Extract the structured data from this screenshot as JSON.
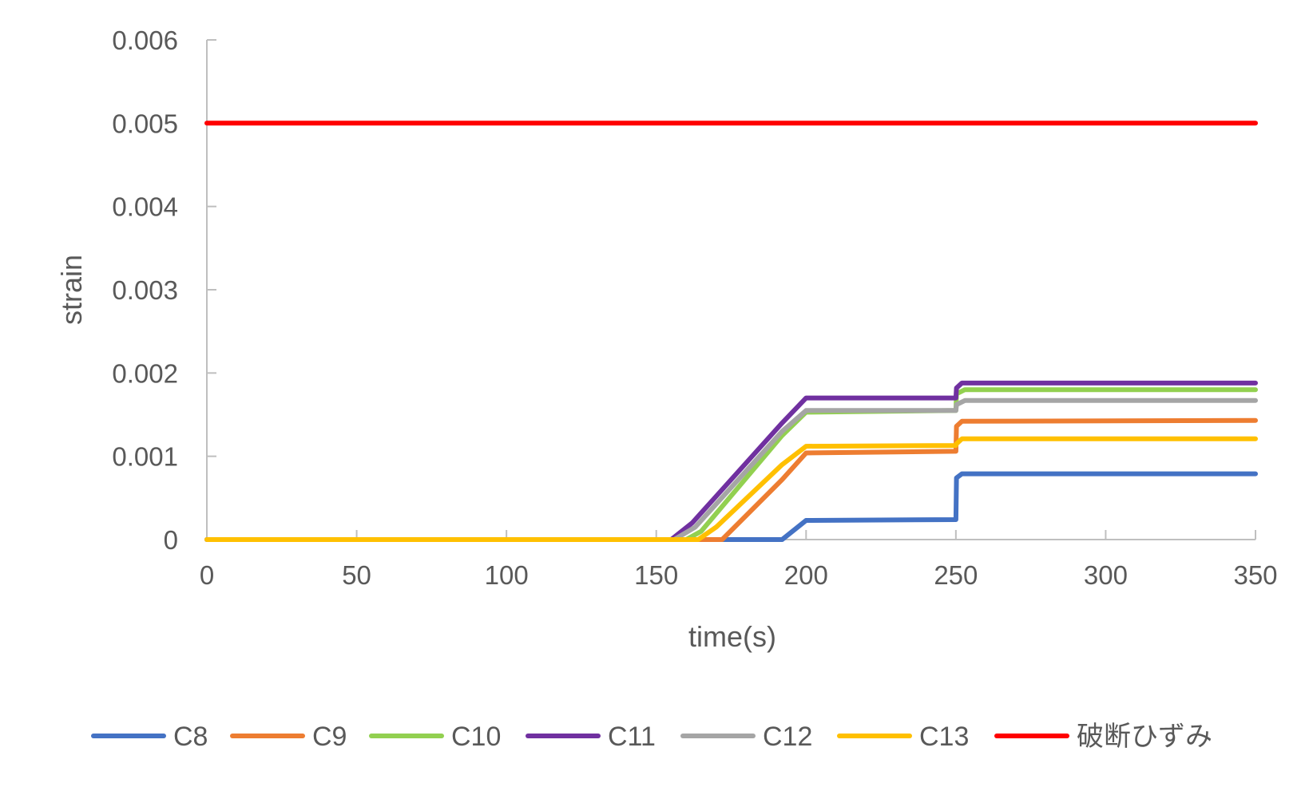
{
  "chart_data": {
    "type": "line",
    "title": "",
    "xlabel": "time(s)",
    "ylabel": "strain",
    "xlim": [
      0,
      350
    ],
    "ylim": [
      0,
      0.006
    ],
    "x_ticks": [
      0,
      50,
      100,
      150,
      200,
      250,
      300,
      350
    ],
    "x_tick_labels": [
      "0",
      "50",
      "100",
      "150",
      "200",
      "250",
      "300",
      "350"
    ],
    "y_ticks": [
      0,
      0.001,
      0.002,
      0.003,
      0.004,
      0.005,
      0.006
    ],
    "y_tick_labels": [
      "0",
      "0.001",
      "0.002",
      "0.003",
      "0.004",
      "0.005",
      "0.006"
    ],
    "grid": false,
    "legend_position": "bottom",
    "series": [
      {
        "name": "C8",
        "color": "#4472C4",
        "points": [
          [
            0,
            0
          ],
          [
            192,
            0
          ],
          [
            200,
            0.00023
          ],
          [
            250,
            0.00024
          ],
          [
            250.2,
            0.00074
          ],
          [
            252,
            0.00079
          ],
          [
            350,
            0.00079
          ]
        ]
      },
      {
        "name": "C9",
        "color": "#ED7D31",
        "points": [
          [
            0,
            0
          ],
          [
            172,
            0
          ],
          [
            192,
            0.00072
          ],
          [
            200,
            0.00104
          ],
          [
            250,
            0.00106
          ],
          [
            250.2,
            0.00136
          ],
          [
            252,
            0.00142
          ],
          [
            350,
            0.00143
          ]
        ]
      },
      {
        "name": "C10",
        "color": "#92D050",
        "points": [
          [
            0,
            0
          ],
          [
            160,
            0
          ],
          [
            165,
            0.0001
          ],
          [
            192,
            0.00125
          ],
          [
            200,
            0.00153
          ],
          [
            250,
            0.00155
          ],
          [
            250.2,
            0.00175
          ],
          [
            253,
            0.0018
          ],
          [
            350,
            0.0018
          ]
        ]
      },
      {
        "name": "C11",
        "color": "#7030A0",
        "points": [
          [
            0,
            0
          ],
          [
            155,
            0
          ],
          [
            162,
            0.0002
          ],
          [
            192,
            0.0014
          ],
          [
            200,
            0.0017
          ],
          [
            250,
            0.0017
          ],
          [
            250.2,
            0.00182
          ],
          [
            252,
            0.00188
          ],
          [
            350,
            0.00188
          ]
        ]
      },
      {
        "name": "C12",
        "color": "#A5A5A5",
        "points": [
          [
            0,
            0
          ],
          [
            156,
            0
          ],
          [
            163,
            0.00015
          ],
          [
            192,
            0.0013
          ],
          [
            200,
            0.00155
          ],
          [
            250,
            0.00155
          ],
          [
            250.2,
            0.00162
          ],
          [
            253,
            0.00167
          ],
          [
            350,
            0.00167
          ]
        ]
      },
      {
        "name": "C13",
        "color": "#FFC000",
        "points": [
          [
            0,
            0
          ],
          [
            164,
            0
          ],
          [
            170,
            0.00015
          ],
          [
            192,
            0.0009
          ],
          [
            200,
            0.00112
          ],
          [
            250,
            0.00113
          ],
          [
            250.2,
            0.00115
          ],
          [
            252,
            0.00121
          ],
          [
            350,
            0.00121
          ]
        ]
      },
      {
        "name": "破断ひずみ",
        "color": "#FF0000",
        "points": [
          [
            0,
            0.005
          ],
          [
            350,
            0.005
          ]
        ]
      }
    ]
  }
}
